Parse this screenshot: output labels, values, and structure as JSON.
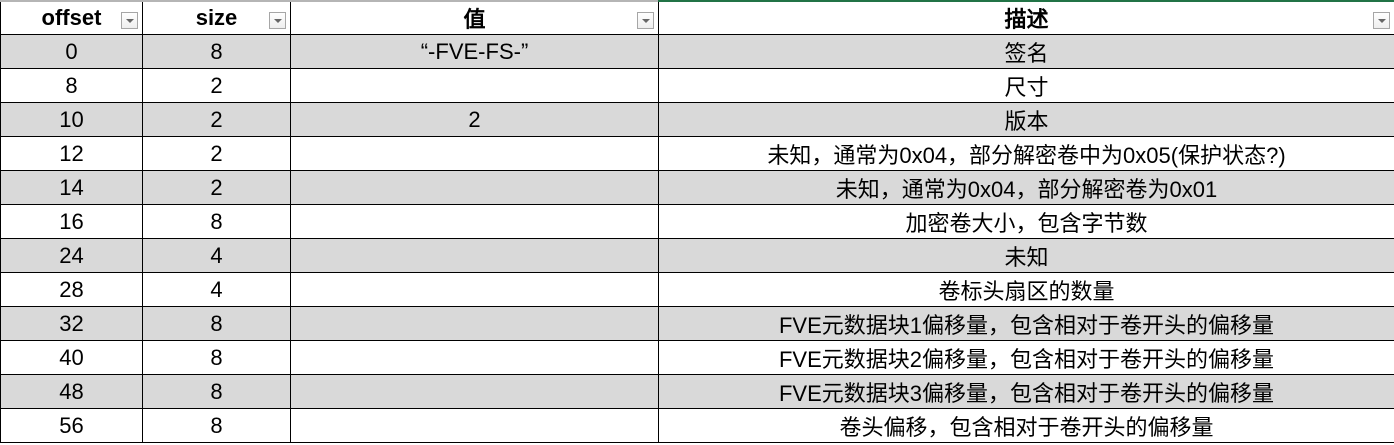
{
  "headers": [
    "offset",
    "size",
    "值",
    "描述"
  ],
  "rows": [
    {
      "offset": "0",
      "size": "8",
      "value": "“-FVE-FS-”",
      "desc": "签名"
    },
    {
      "offset": "8",
      "size": "2",
      "value": "",
      "desc": "尺寸"
    },
    {
      "offset": "10",
      "size": "2",
      "value": "2",
      "desc": "版本"
    },
    {
      "offset": "12",
      "size": "2",
      "value": "",
      "desc": "未知，通常为0x04，部分解密卷中为0x05(保护状态?)"
    },
    {
      "offset": "14",
      "size": "2",
      "value": "",
      "desc": "未知，通常为0x04，部分解密卷为0x01"
    },
    {
      "offset": "16",
      "size": "8",
      "value": "",
      "desc": "加密卷大小，包含字节数"
    },
    {
      "offset": "24",
      "size": "4",
      "value": "",
      "desc": "未知"
    },
    {
      "offset": "28",
      "size": "4",
      "value": "",
      "desc": "卷标头扇区的数量"
    },
    {
      "offset": "32",
      "size": "8",
      "value": "",
      "desc": "FVE元数据块1偏移量，包含相对于卷开头的偏移量"
    },
    {
      "offset": "40",
      "size": "8",
      "value": "",
      "desc": "FVE元数据块2偏移量，包含相对于卷开头的偏移量"
    },
    {
      "offset": "48",
      "size": "8",
      "value": "",
      "desc": "FVE元数据块3偏移量，包含相对于卷开头的偏移量"
    },
    {
      "offset": "56",
      "size": "8",
      "value": "",
      "desc": "卷头偏移，包含相对于卷开头的偏移量"
    }
  ],
  "colors": {
    "shade": "#d9d9d9",
    "selection_border": "#217346"
  }
}
